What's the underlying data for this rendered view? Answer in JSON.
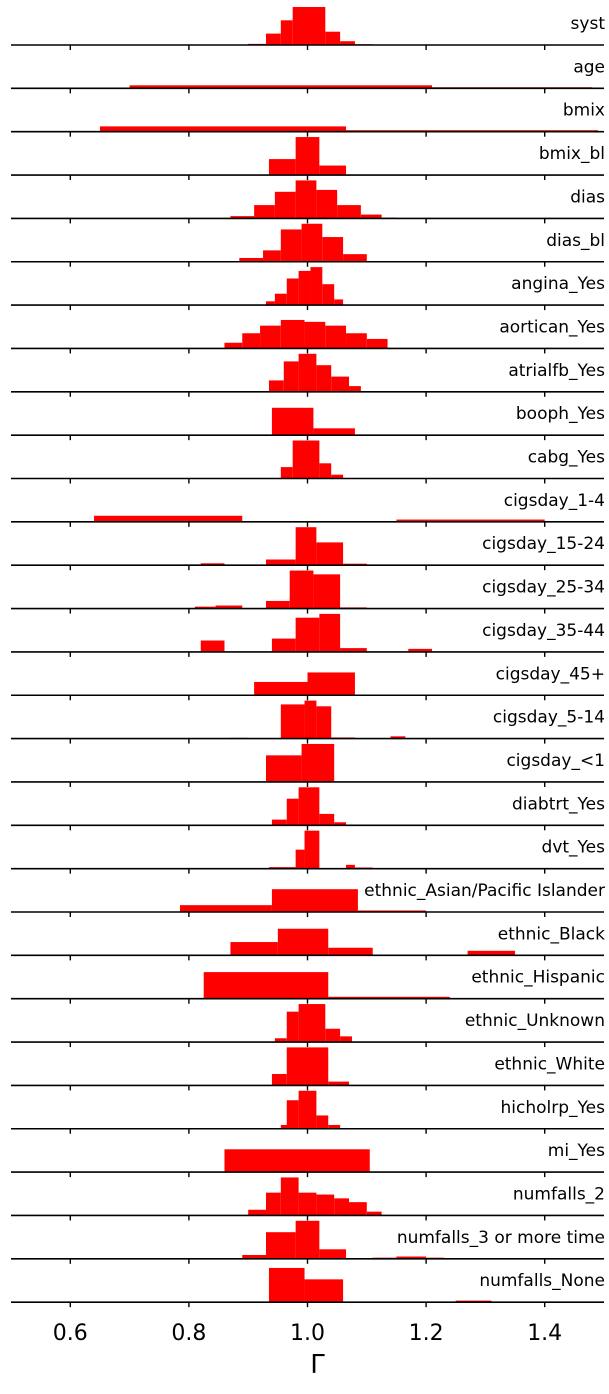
{
  "chart_data": {
    "type": "histogram-ridge",
    "xlabel": "Γ",
    "xlim": [
      0.5,
      1.5
    ],
    "xticks": [
      0.6,
      0.8,
      1.0,
      1.2,
      1.4
    ],
    "xtick_labels": [
      "0.6",
      "0.8",
      "1.0",
      "1.2",
      "1.4"
    ],
    "bar_color": "#ff0000",
    "panels": [
      {
        "label": "syst",
        "bins": [
          [
            0.9,
            0.93,
            0.03
          ],
          [
            0.93,
            0.955,
            0.3
          ],
          [
            0.955,
            0.975,
            0.65
          ],
          [
            0.975,
            1.03,
            1.0
          ],
          [
            1.03,
            1.055,
            0.35
          ],
          [
            1.055,
            1.08,
            0.1
          ],
          [
            1.08,
            1.11,
            0.02
          ]
        ]
      },
      {
        "label": "age",
        "bins": [
          [
            0.5,
            0.7,
            0.02
          ],
          [
            0.7,
            1.21,
            0.08
          ],
          [
            1.21,
            1.48,
            0.03
          ]
        ]
      },
      {
        "label": "bmix",
        "bins": [
          [
            0.5,
            0.65,
            0.02
          ],
          [
            0.65,
            1.065,
            0.14
          ],
          [
            1.065,
            1.49,
            0.04
          ]
        ]
      },
      {
        "label": "bmix_bl",
        "bins": [
          [
            0.935,
            0.98,
            0.42
          ],
          [
            0.98,
            1.02,
            1.0
          ],
          [
            1.02,
            1.065,
            0.25
          ]
        ]
      },
      {
        "label": "dias",
        "bins": [
          [
            0.87,
            0.91,
            0.06
          ],
          [
            0.91,
            0.945,
            0.35
          ],
          [
            0.945,
            0.98,
            0.7
          ],
          [
            0.98,
            1.015,
            1.0
          ],
          [
            1.015,
            1.05,
            0.75
          ],
          [
            1.05,
            1.09,
            0.35
          ],
          [
            1.09,
            1.125,
            0.1
          ],
          [
            1.125,
            1.15,
            0.02
          ]
        ]
      },
      {
        "label": "dias_bl",
        "bins": [
          [
            0.885,
            0.925,
            0.1
          ],
          [
            0.925,
            0.955,
            0.3
          ],
          [
            0.955,
            0.99,
            0.85
          ],
          [
            0.99,
            1.025,
            1.0
          ],
          [
            1.025,
            1.06,
            0.65
          ],
          [
            1.06,
            1.1,
            0.2
          ]
        ]
      },
      {
        "label": "angina_Yes",
        "bins": [
          [
            0.93,
            0.945,
            0.1
          ],
          [
            0.945,
            0.965,
            0.3
          ],
          [
            0.965,
            0.985,
            0.7
          ],
          [
            0.985,
            1.005,
            0.9
          ],
          [
            1.005,
            1.025,
            1.0
          ],
          [
            1.025,
            1.045,
            0.55
          ],
          [
            1.045,
            1.06,
            0.15
          ]
        ]
      },
      {
        "label": "aortican_Yes",
        "bins": [
          [
            0.86,
            0.89,
            0.15
          ],
          [
            0.89,
            0.92,
            0.4
          ],
          [
            0.92,
            0.955,
            0.6
          ],
          [
            0.955,
            0.995,
            0.75
          ],
          [
            0.995,
            1.03,
            0.7
          ],
          [
            1.03,
            1.065,
            0.6
          ],
          [
            1.065,
            1.1,
            0.4
          ],
          [
            1.1,
            1.135,
            0.25
          ]
        ]
      },
      {
        "label": "atrialfb_Yes",
        "bins": [
          [
            0.935,
            0.96,
            0.3
          ],
          [
            0.96,
            0.985,
            0.8
          ],
          [
            0.985,
            1.015,
            1.0
          ],
          [
            1.015,
            1.04,
            0.7
          ],
          [
            1.04,
            1.07,
            0.4
          ],
          [
            1.07,
            1.09,
            0.15
          ]
        ]
      },
      {
        "label": "booph_Yes",
        "bins": [
          [
            0.94,
            1.01,
            0.72
          ],
          [
            1.01,
            1.08,
            0.18
          ]
        ]
      },
      {
        "label": "cabg_Yes",
        "bins": [
          [
            0.955,
            0.975,
            0.3
          ],
          [
            0.975,
            1.02,
            1.0
          ],
          [
            1.02,
            1.04,
            0.4
          ],
          [
            1.04,
            1.06,
            0.1
          ]
        ]
      },
      {
        "label": "cigsday_1-4",
        "bins": [
          [
            0.64,
            0.89,
            0.16
          ],
          [
            1.15,
            1.4,
            0.06
          ]
        ]
      },
      {
        "label": "cigsday_15-24",
        "bins": [
          [
            0.79,
            0.82,
            0.02
          ],
          [
            0.82,
            0.86,
            0.05
          ],
          [
            0.93,
            0.98,
            0.15
          ],
          [
            0.98,
            1.015,
            1.0
          ],
          [
            1.015,
            1.06,
            0.6
          ],
          [
            1.06,
            1.1,
            0.04
          ]
        ]
      },
      {
        "label": "cigsday_25-34",
        "bins": [
          [
            0.81,
            0.845,
            0.05
          ],
          [
            0.845,
            0.89,
            0.08
          ],
          [
            0.93,
            0.97,
            0.2
          ],
          [
            0.97,
            1.01,
            1.0
          ],
          [
            1.01,
            1.055,
            0.9
          ],
          [
            1.055,
            1.1,
            0.03
          ]
        ]
      },
      {
        "label": "cigsday_35-44",
        "bins": [
          [
            0.82,
            0.86,
            0.3
          ],
          [
            0.94,
            0.98,
            0.35
          ],
          [
            0.98,
            1.02,
            0.9
          ],
          [
            1.02,
            1.055,
            1.0
          ],
          [
            1.055,
            1.1,
            0.1
          ],
          [
            1.17,
            1.21,
            0.08
          ]
        ]
      },
      {
        "label": "cigsday_45+",
        "bins": [
          [
            0.67,
            0.75,
            0.02
          ],
          [
            0.91,
            1.0,
            0.35
          ],
          [
            1.0,
            1.08,
            0.6
          ]
        ]
      },
      {
        "label": "cigsday_5-14",
        "bins": [
          [
            0.87,
            0.9,
            0.02
          ],
          [
            0.955,
            0.995,
            0.9
          ],
          [
            0.995,
            1.015,
            1.0
          ],
          [
            1.015,
            1.04,
            0.85
          ],
          [
            1.04,
            1.08,
            0.03
          ],
          [
            1.14,
            1.165,
            0.06
          ]
        ]
      },
      {
        "label": "cigsday_<1",
        "bins": [
          [
            0.93,
            0.99,
            0.7
          ],
          [
            0.99,
            1.045,
            1.0
          ]
        ]
      },
      {
        "label": "diabtrt_Yes",
        "bins": [
          [
            0.94,
            0.965,
            0.15
          ],
          [
            0.965,
            0.985,
            0.7
          ],
          [
            0.985,
            1.02,
            1.0
          ],
          [
            1.02,
            1.045,
            0.3
          ],
          [
            1.045,
            1.065,
            0.08
          ]
        ]
      },
      {
        "label": "dvt_Yes",
        "bins": [
          [
            0.935,
            0.98,
            0.04
          ],
          [
            0.98,
            0.995,
            0.5
          ],
          [
            0.995,
            1.02,
            1.0
          ],
          [
            1.065,
            1.08,
            0.1
          ],
          [
            1.08,
            1.11,
            0.03
          ]
        ]
      },
      {
        "label": "ethnic_Asian/Pacific Islander",
        "bins": [
          [
            0.785,
            0.94,
            0.18
          ],
          [
            0.94,
            1.085,
            0.6
          ],
          [
            1.085,
            1.2,
            0.04
          ]
        ]
      },
      {
        "label": "ethnic_Black",
        "bins": [
          [
            0.87,
            0.95,
            0.35
          ],
          [
            0.95,
            1.035,
            0.7
          ],
          [
            1.035,
            1.11,
            0.2
          ],
          [
            1.27,
            1.35,
            0.12
          ]
        ]
      },
      {
        "label": "ethnic_Hispanic",
        "bins": [
          [
            0.825,
            1.035,
            0.7
          ],
          [
            1.035,
            1.24,
            0.05
          ]
        ]
      },
      {
        "label": "ethnic_Unknown",
        "bins": [
          [
            0.945,
            0.965,
            0.1
          ],
          [
            0.965,
            0.985,
            0.8
          ],
          [
            0.985,
            1.03,
            1.0
          ],
          [
            1.03,
            1.055,
            0.35
          ],
          [
            1.055,
            1.075,
            0.15
          ]
        ]
      },
      {
        "label": "ethnic_White",
        "bins": [
          [
            0.94,
            0.965,
            0.3
          ],
          [
            0.965,
            1.035,
            1.0
          ],
          [
            1.035,
            1.07,
            0.1
          ]
        ]
      },
      {
        "label": "hicholrp_Yes",
        "bins": [
          [
            0.955,
            0.975,
            0.1
          ],
          [
            0.965,
            0.985,
            0.75
          ],
          [
            0.985,
            1.015,
            1.0
          ],
          [
            1.015,
            1.035,
            0.35
          ],
          [
            1.035,
            1.055,
            0.1
          ]
        ]
      },
      {
        "label": "mi_Yes",
        "bins": [
          [
            0.86,
            1.105,
            0.6
          ]
        ]
      },
      {
        "label": "numfalls_2",
        "bins": [
          [
            0.9,
            0.93,
            0.15
          ],
          [
            0.93,
            0.955,
            0.6
          ],
          [
            0.955,
            0.985,
            1.0
          ],
          [
            0.985,
            1.015,
            0.6
          ],
          [
            1.015,
            1.045,
            0.55
          ],
          [
            1.045,
            1.07,
            0.45
          ],
          [
            1.07,
            1.1,
            0.35
          ],
          [
            1.1,
            1.125,
            0.1
          ]
        ]
      },
      {
        "label": "numfalls_3 or more time",
        "bins": [
          [
            0.89,
            0.93,
            0.1
          ],
          [
            0.93,
            0.98,
            0.7
          ],
          [
            0.98,
            1.02,
            1.0
          ],
          [
            1.02,
            1.065,
            0.25
          ],
          [
            1.11,
            1.15,
            0.03
          ],
          [
            1.15,
            1.2,
            0.06
          ],
          [
            1.2,
            1.23,
            0.03
          ]
        ]
      },
      {
        "label": "numfalls_None",
        "bins": [
          [
            0.935,
            0.995,
            0.9
          ],
          [
            0.995,
            1.06,
            0.6
          ],
          [
            1.25,
            1.31,
            0.04
          ]
        ]
      }
    ]
  }
}
